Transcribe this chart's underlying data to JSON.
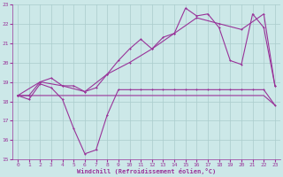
{
  "background_color": "#cce8e8",
  "grid_color": "#aacccc",
  "line_color": "#993399",
  "xlim": [
    -0.5,
    23.5
  ],
  "ylim": [
    15,
    23
  ],
  "xticks": [
    0,
    1,
    2,
    3,
    4,
    5,
    6,
    7,
    8,
    9,
    10,
    11,
    12,
    13,
    14,
    15,
    16,
    17,
    18,
    19,
    20,
    21,
    22,
    23
  ],
  "yticks": [
    15,
    16,
    17,
    18,
    19,
    20,
    21,
    22,
    23
  ],
  "xlabel": "Windchill (Refroidissement éolien,°C)",
  "series_dip_x": [
    0,
    1,
    2,
    3,
    4,
    5,
    6,
    7,
    8,
    9,
    10,
    11,
    12,
    13,
    14,
    15,
    16,
    17,
    18,
    19,
    20,
    21,
    22,
    23
  ],
  "series_dip_y": [
    18.3,
    18.1,
    18.9,
    18.7,
    18.1,
    16.6,
    15.3,
    15.5,
    17.3,
    18.6,
    18.6,
    18.6,
    18.6,
    18.6,
    18.6,
    18.6,
    18.6,
    18.6,
    18.6,
    18.6,
    18.6,
    18.6,
    18.6,
    17.8
  ],
  "series_rise1_x": [
    0,
    1,
    2,
    3,
    4,
    5,
    6,
    7,
    8,
    9,
    10,
    11,
    12,
    13,
    14,
    15,
    16,
    17,
    18,
    19,
    20,
    21,
    22,
    23
  ],
  "series_rise1_y": [
    18.3,
    18.3,
    19.0,
    19.2,
    18.8,
    18.8,
    18.5,
    18.7,
    19.4,
    20.1,
    20.7,
    21.2,
    20.7,
    21.3,
    21.5,
    22.8,
    22.4,
    22.5,
    21.8,
    20.1,
    19.9,
    22.5,
    21.8,
    18.8
  ],
  "series_rise2_x": [
    0,
    2,
    4,
    6,
    8,
    10,
    12,
    14,
    16,
    18,
    20,
    22,
    23
  ],
  "series_rise2_y": [
    18.3,
    19.0,
    18.8,
    18.5,
    19.4,
    20.0,
    20.7,
    21.5,
    22.3,
    22.0,
    21.7,
    22.5,
    18.8
  ],
  "series_flat_x": [
    0,
    1,
    2,
    3,
    4,
    5,
    6,
    7,
    8,
    9,
    10,
    11,
    12,
    13,
    14,
    15,
    16,
    17,
    18,
    19,
    20,
    21,
    22,
    23
  ],
  "series_flat_y": [
    18.3,
    18.3,
    18.3,
    18.3,
    18.3,
    18.3,
    18.3,
    18.3,
    18.3,
    18.3,
    18.3,
    18.3,
    18.3,
    18.3,
    18.3,
    18.3,
    18.3,
    18.3,
    18.3,
    18.3,
    18.3,
    18.3,
    18.3,
    17.8
  ]
}
